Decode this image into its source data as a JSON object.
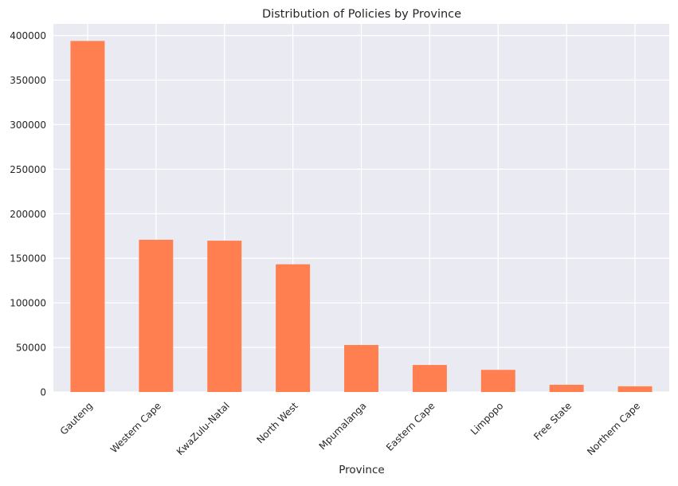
{
  "chart_data": {
    "type": "bar",
    "title": "Distribution of Policies by Province",
    "xlabel": "Province",
    "ylabel": "",
    "categories": [
      "Gauteng",
      "Western Cape",
      "KwaZulu-Natal",
      "North West",
      "Mpumalanga",
      "Eastern Cape",
      "Limpopo",
      "Free State",
      "Northern Cape"
    ],
    "values": [
      393865,
      170796,
      169781,
      143287,
      52718,
      30336,
      24836,
      8088,
      6380
    ],
    "ylim": [
      0,
      413000
    ],
    "yticks": [
      0,
      50000,
      100000,
      150000,
      200000,
      250000,
      300000,
      350000,
      400000
    ],
    "grid": true,
    "bar_color": "#ff7f50",
    "background_color": "#eaeaf2",
    "grid_color": "#ffffff",
    "tick_rotation_deg": -45
  }
}
